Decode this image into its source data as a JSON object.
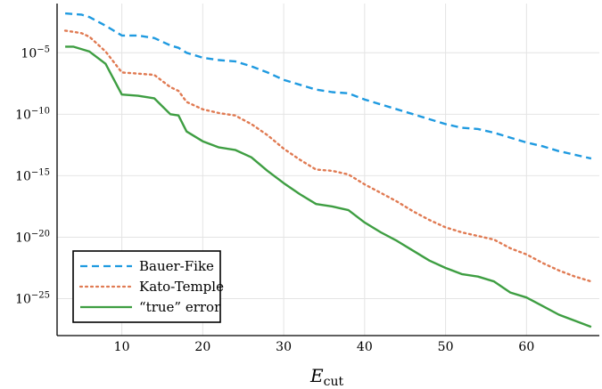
{
  "chart_data": {
    "type": "line",
    "title": "",
    "xlabel_main": "E",
    "xlabel_sub": "cut",
    "ylabel": "",
    "yscale": "log",
    "xlim": [
      2,
      69
    ],
    "ylim_exp": [
      -28,
      -1
    ],
    "grid": true,
    "legend_position": "bottom-left",
    "x_ticks": [
      10,
      20,
      30,
      40,
      50,
      60
    ],
    "x_tick_labels": [
      "10",
      "20",
      "30",
      "40",
      "50",
      "60"
    ],
    "y_ticks_exp": [
      -5,
      -10,
      -15,
      -20,
      -25
    ],
    "y_tick_labels": [
      {
        "base": "10",
        "exp": "−5"
      },
      {
        "base": "10",
        "exp": "−10"
      },
      {
        "base": "10",
        "exp": "−15"
      },
      {
        "base": "10",
        "exp": "−20"
      },
      {
        "base": "10",
        "exp": "−25"
      }
    ],
    "series": [
      {
        "name": "Bauer-Fike",
        "color": "#1f9ae0",
        "dash": "8,5",
        "x": [
          3,
          5,
          6,
          8,
          10,
          12,
          14,
          16,
          17,
          18,
          20,
          22,
          24,
          26,
          28,
          30,
          32,
          34,
          36,
          38,
          40,
          42,
          44,
          46,
          48,
          50,
          52,
          54,
          56,
          58,
          60,
          62,
          64,
          66,
          68
        ],
        "log10_y": [
          -1.8,
          -1.9,
          -2.1,
          -2.8,
          -3.6,
          -3.6,
          -3.8,
          -4.4,
          -4.6,
          -5.0,
          -5.4,
          -5.6,
          -5.7,
          -6.1,
          -6.6,
          -7.2,
          -7.6,
          -8.0,
          -8.2,
          -8.3,
          -8.8,
          -9.2,
          -9.6,
          -10.0,
          -10.4,
          -10.8,
          -11.1,
          -11.2,
          -11.5,
          -11.9,
          -12.3,
          -12.6,
          -13.0,
          -13.3,
          -13.6
        ]
      },
      {
        "name": "Kato-Temple",
        "color": "#e07a52",
        "dash": "2,4",
        "x": [
          3,
          5,
          6,
          8,
          10,
          12,
          14,
          16,
          17,
          18,
          20,
          22,
          24,
          26,
          28,
          30,
          32,
          34,
          36,
          38,
          40,
          42,
          44,
          46,
          48,
          50,
          52,
          54,
          56,
          58,
          60,
          62,
          64,
          66,
          68
        ],
        "log10_y": [
          -3.2,
          -3.4,
          -3.7,
          -4.9,
          -6.6,
          -6.7,
          -6.8,
          -7.8,
          -8.1,
          -9.0,
          -9.6,
          -9.9,
          -10.1,
          -10.8,
          -11.7,
          -12.8,
          -13.7,
          -14.5,
          -14.6,
          -14.9,
          -15.7,
          -16.4,
          -17.1,
          -17.9,
          -18.6,
          -19.2,
          -19.6,
          -19.9,
          -20.2,
          -20.9,
          -21.4,
          -22.1,
          -22.7,
          -23.2,
          -23.6
        ]
      },
      {
        "name": "“true” error",
        "color": "#3e9e42",
        "dash": "",
        "x": [
          3,
          4,
          6,
          8,
          10,
          12,
          14,
          16,
          17,
          18,
          20,
          22,
          24,
          26,
          28,
          30,
          32,
          34,
          36,
          38,
          40,
          42,
          44,
          46,
          48,
          50,
          52,
          54,
          56,
          58,
          60,
          62,
          64,
          66,
          68
        ],
        "log10_y": [
          -4.5,
          -4.5,
          -4.9,
          -5.9,
          -8.4,
          -8.5,
          -8.7,
          -10.0,
          -10.1,
          -11.4,
          -12.2,
          -12.7,
          -12.9,
          -13.5,
          -14.6,
          -15.6,
          -16.5,
          -17.3,
          -17.5,
          -17.8,
          -18.8,
          -19.6,
          -20.3,
          -21.1,
          -21.9,
          -22.5,
          -23.0,
          -23.2,
          -23.6,
          -24.5,
          -24.9,
          -25.6,
          -26.3,
          -26.8,
          -27.3
        ]
      }
    ]
  }
}
